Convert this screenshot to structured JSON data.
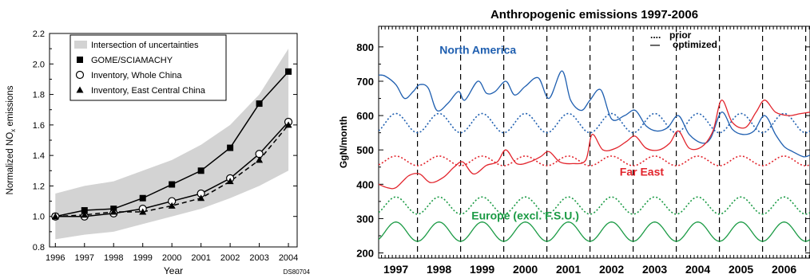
{
  "chart_data": [
    {
      "type": "line",
      "title": "",
      "xlabel": "Year",
      "ylabel_main": "Normalized NO",
      "ylabel_sub": "x",
      "ylabel_tail": " emissions",
      "footnote": "DS80704",
      "x": [
        1996,
        1997,
        1998,
        1999,
        2000,
        2001,
        2002,
        2003,
        2004
      ],
      "xlim": [
        1995.8,
        2004.3
      ],
      "ylim": [
        0.8,
        2.2
      ],
      "xticks": [
        "1996",
        "1997",
        "1998",
        "1999",
        "2000",
        "2001",
        "2002",
        "2003",
        "2004"
      ],
      "yticks": [
        "0.8",
        "1.0",
        "1.2",
        "1.4",
        "1.6",
        "1.8",
        "2.0",
        "2.2"
      ],
      "band": {
        "name": "Intersection of uncertainties",
        "lower": [
          0.85,
          0.88,
          0.9,
          0.95,
          1.0,
          1.05,
          1.12,
          1.2,
          1.3
        ],
        "upper": [
          1.15,
          1.2,
          1.23,
          1.3,
          1.37,
          1.47,
          1.6,
          1.8,
          2.1
        ],
        "color": "#d3d3d3"
      },
      "series": [
        {
          "name": "GOME/SCIAMACHY",
          "marker": "square",
          "dash": "solid",
          "values": [
            1.0,
            1.04,
            1.05,
            1.12,
            1.21,
            1.3,
            1.45,
            1.74,
            1.95
          ]
        },
        {
          "name": "Inventory, Whole China",
          "marker": "circle",
          "dash": "solid",
          "values": [
            1.0,
            1.0,
            1.02,
            1.05,
            1.1,
            1.15,
            1.25,
            1.41,
            1.62
          ]
        },
        {
          "name": "Inventory, East Central China",
          "marker": "triangle",
          "dash": "dashed",
          "values": [
            1.0,
            1.01,
            1.03,
            1.03,
            1.07,
            1.12,
            1.23,
            1.37,
            1.6
          ]
        }
      ],
      "legend": "top-left"
    },
    {
      "type": "line",
      "title": "Anthropogenic emissions 1997-2006",
      "ylabel": "GgN/month",
      "xlim": [
        1996.6,
        2006.6
      ],
      "ylim": [
        185,
        860
      ],
      "xticks": [
        "1997",
        "1998",
        "1999",
        "2000",
        "2001",
        "2002",
        "2003",
        "2004",
        "2005",
        "2006"
      ],
      "yticks": [
        "200",
        "300",
        "400",
        "500",
        "600",
        "700",
        "800"
      ],
      "legend_items": [
        "prior",
        "optimized"
      ],
      "legend_symbols": [
        "....",
        "—"
      ],
      "grid": "dashed year separators",
      "regions": [
        {
          "name": "North America",
          "color": "#1f5fb0",
          "prior": {
            "base": 578,
            "amp": 28,
            "phase_peak": 0.0
          },
          "optimized": {
            "x": [
              1996.6,
              1996.75,
              1997.0,
              1997.2,
              1997.4,
              1997.55,
              1997.75,
              1997.95,
              1998.2,
              1998.45,
              1998.6,
              1998.9,
              1999.1,
              1999.3,
              1999.55,
              1999.75,
              2000.0,
              2000.3,
              2000.55,
              2000.85,
              2001.05,
              2001.3,
              2001.5,
              2001.75,
              2002.0,
              2002.3,
              2002.55,
              2002.8,
              2003.05,
              2003.3,
              2003.55,
              2003.8,
              2004.1,
              2004.3,
              2004.55,
              2004.8,
              2005.05,
              2005.3,
              2005.55,
              2005.8,
              2006.0,
              2006.2,
              2006.45,
              2006.6
            ],
            "y": [
              718,
              715,
              690,
              650,
              670,
              690,
              680,
              615,
              635,
              670,
              645,
              700,
              665,
              670,
              700,
              660,
              685,
              710,
              650,
              730,
              645,
              615,
              645,
              675,
              590,
              600,
              615,
              570,
              555,
              565,
              600,
              545,
              520,
              535,
              610,
              560,
              545,
              555,
              600,
              545,
              510,
              495,
              480,
              485
            ]
          }
        },
        {
          "name": "Far East",
          "color": "#e2242c",
          "prior": {
            "base": 468,
            "amp": 14,
            "phase_peak": 0.0
          },
          "optimized": {
            "x": [
              1996.6,
              1996.8,
              1997.0,
              1997.3,
              1997.55,
              1997.8,
              1998.1,
              1998.35,
              1998.55,
              1998.8,
              1999.1,
              1999.35,
              1999.55,
              1999.8,
              2000.1,
              2000.35,
              2000.55,
              2000.8,
              2001.1,
              2001.4,
              2001.55,
              2001.8,
              2002.1,
              2002.35,
              2002.55,
              2002.8,
              2003.1,
              2003.35,
              2003.55,
              2003.8,
              2004.1,
              2004.35,
              2004.55,
              2004.8,
              2005.1,
              2005.35,
              2005.55,
              2005.8,
              2006.1,
              2006.35,
              2006.6
            ],
            "y": [
              400,
              390,
              390,
              425,
              430,
              405,
              420,
              450,
              465,
              430,
              455,
              465,
              500,
              460,
              465,
              480,
              495,
              465,
              460,
              470,
              545,
              500,
              505,
              525,
              540,
              505,
              500,
              520,
              555,
              505,
              510,
              555,
              645,
              580,
              565,
              610,
              645,
              610,
              600,
              605,
              610
            ]
          }
        },
        {
          "name": "Europe (excl. F.S.U.)",
          "color": "#1a9a44",
          "prior": {
            "base": 338,
            "amp": 25,
            "phase_peak": 0.0
          },
          "optimized": {
            "base": 262,
            "amp": 28,
            "phase_peak": 0.0
          }
        }
      ]
    }
  ]
}
